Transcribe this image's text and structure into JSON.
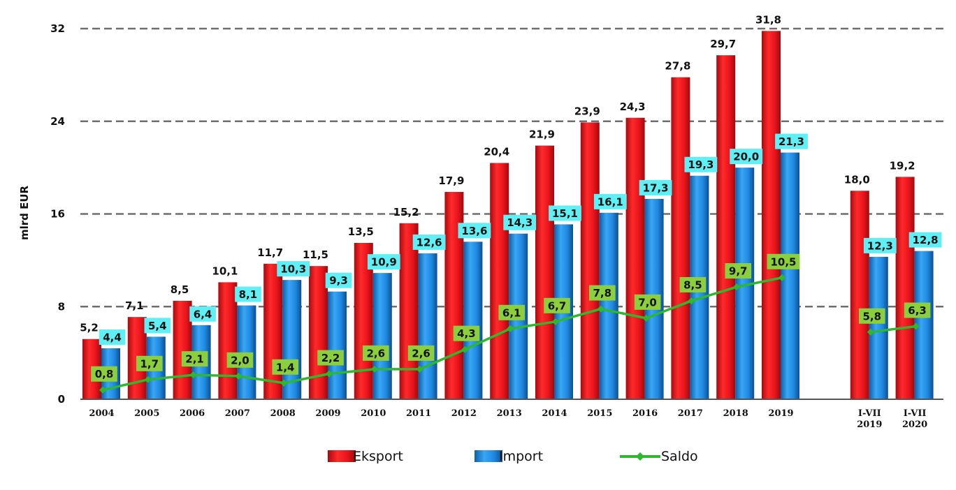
{
  "chart_data": {
    "type": "bar",
    "title": "",
    "xlabel": "",
    "ylabel": "mlrd EUR",
    "ylim": [
      0,
      32
    ],
    "yticks": [
      "0",
      "8",
      "16",
      "24",
      "32"
    ],
    "grid": true,
    "legend_position": "bottom",
    "categories": [
      [
        "2004"
      ],
      [
        "2005"
      ],
      [
        "2006"
      ],
      [
        "2007"
      ],
      [
        "2008"
      ],
      [
        "2009"
      ],
      [
        "2010"
      ],
      [
        "2011"
      ],
      [
        "2012"
      ],
      [
        "2013"
      ],
      [
        "2014"
      ],
      [
        "2015"
      ],
      [
        "2016"
      ],
      [
        "2017"
      ],
      [
        "2018"
      ],
      [
        "2019"
      ],
      [
        "I-VII",
        "2019"
      ],
      [
        "I-VII",
        "2020"
      ]
    ],
    "series": [
      {
        "name": "Eksport",
        "type": "bar",
        "color": "#e8141b",
        "values": [
          5.2,
          7.1,
          8.5,
          10.1,
          11.7,
          11.5,
          13.5,
          15.2,
          17.9,
          20.4,
          21.9,
          23.9,
          24.3,
          27.8,
          29.7,
          31.8,
          18.0,
          19.2
        ],
        "labels": [
          "5,2",
          "7,1",
          "8,5",
          "10,1",
          "11,7",
          "11,5",
          "13,5",
          "15,2",
          "17,9",
          "20,4",
          "21,9",
          "23,9",
          "24,3",
          "27,8",
          "29,7",
          "31,8",
          "18,0",
          "19,2"
        ]
      },
      {
        "name": "Import",
        "type": "bar",
        "color": "#1e90e8",
        "label_bg": "#5ff0f5",
        "values": [
          4.4,
          5.4,
          6.4,
          8.1,
          10.3,
          9.3,
          10.9,
          12.6,
          13.6,
          14.3,
          15.1,
          16.1,
          17.3,
          19.3,
          20.0,
          21.3,
          12.3,
          12.8
        ],
        "labels": [
          "4,4",
          "5,4",
          "6,4",
          "8,1",
          "10,3",
          "9,3",
          "10,9",
          "12,6",
          "13,6",
          "14,3",
          "15,1",
          "16,1",
          "17,3",
          "19,3",
          "20,0",
          "21,3",
          "12,3",
          "12,8"
        ]
      },
      {
        "name": "Saldo",
        "type": "line",
        "color": "#2db82d",
        "label_bg": "#8ccf3c",
        "values": [
          0.8,
          1.7,
          2.1,
          2.0,
          1.4,
          2.2,
          2.6,
          2.6,
          4.3,
          6.1,
          6.7,
          7.8,
          7.0,
          8.5,
          9.7,
          10.5,
          5.8,
          6.3
        ],
        "labels": [
          "0,8",
          "1,7",
          "2,1",
          "2,0",
          "1,4",
          "2,2",
          "2,6",
          "2,6",
          "4,3",
          "6,1",
          "6,7",
          "7,8",
          "7,0",
          "8,5",
          "9,7",
          "10,5",
          "5,8",
          "6,3"
        ],
        "segments": [
          [
            0,
            15
          ],
          [
            16,
            17
          ]
        ]
      }
    ]
  }
}
